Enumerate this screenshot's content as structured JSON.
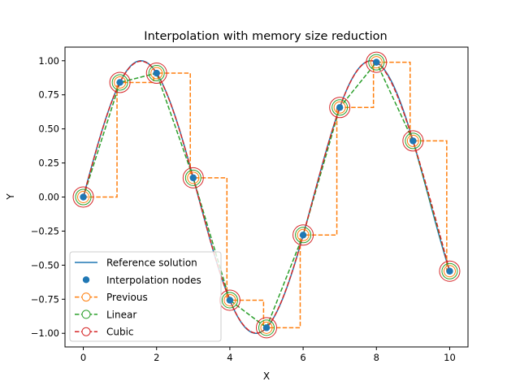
{
  "chart_data": {
    "type": "line",
    "title": "Interpolation with memory size reduction",
    "xlabel": "X",
    "ylabel": "Y",
    "xlim": [
      -0.5,
      10.5
    ],
    "ylim": [
      -1.1,
      1.1
    ],
    "xticks": [
      0,
      2,
      4,
      6,
      8,
      10
    ],
    "xtick_labels": [
      "0",
      "2",
      "4",
      "6",
      "8",
      "10"
    ],
    "yticks": [
      -1.0,
      -0.75,
      -0.5,
      -0.25,
      0.0,
      0.25,
      0.5,
      0.75,
      1.0
    ],
    "ytick_labels": [
      "−1.00",
      "−0.75",
      "−0.50",
      "−0.25",
      "0.00",
      "0.25",
      "0.50",
      "0.75",
      "1.00"
    ],
    "grid": false,
    "legend_position": "lower-left",
    "nodes": {
      "x": [
        0,
        1,
        2,
        3,
        4,
        5,
        6,
        7,
        8,
        9,
        10
      ],
      "y": [
        0.0,
        0.841,
        0.909,
        0.141,
        -0.757,
        -0.959,
        -0.279,
        0.657,
        0.989,
        0.412,
        -0.544
      ]
    },
    "series": [
      {
        "name": "Reference solution",
        "kind": "reference",
        "function": "sin(x)",
        "x_range": [
          0,
          10
        ],
        "color": "#1f77b4",
        "style": "solid"
      },
      {
        "name": "Interpolation nodes",
        "kind": "nodes",
        "color": "#1f77b4",
        "style": "marker"
      },
      {
        "name": "Previous",
        "kind": "previous",
        "color": "#ff7f0e",
        "style": "dashed"
      },
      {
        "name": "Linear",
        "kind": "linear",
        "color": "#2ca02c",
        "style": "dashed"
      },
      {
        "name": "Cubic",
        "kind": "cubic",
        "color": "#d62728",
        "style": "dashed"
      }
    ]
  }
}
